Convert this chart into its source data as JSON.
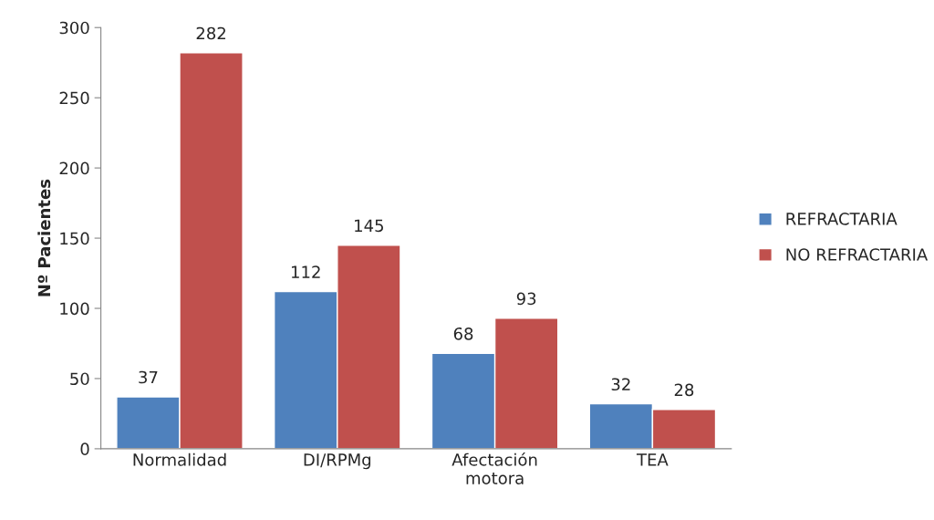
{
  "chart_data": {
    "type": "bar",
    "ylabel": "Nº Pacientes",
    "categories": [
      "Normalidad",
      "DI/RPMg",
      "Afectación\nmotora",
      "TEA"
    ],
    "series": [
      {
        "name": "REFRACTARIA",
        "color": "#4f81bd",
        "values": [
          37,
          112,
          68,
          32
        ]
      },
      {
        "name": "NO REFRACTARIA",
        "color": "#c0504d",
        "values": [
          282,
          145,
          93,
          28
        ]
      }
    ],
    "ylim": [
      0,
      300
    ],
    "yticks": [
      0,
      50,
      100,
      150,
      200,
      250,
      300
    ],
    "grid": false,
    "legend": "right",
    "data_labels": true
  }
}
